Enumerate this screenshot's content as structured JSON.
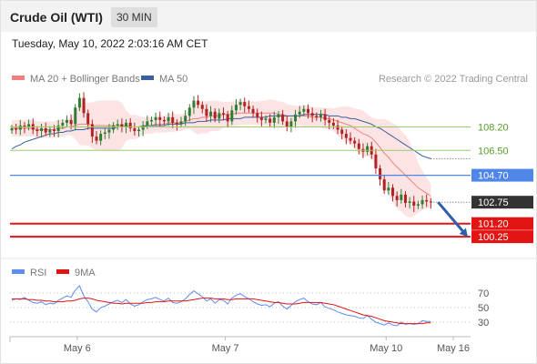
{
  "header": {
    "title": "Crude Oil (WTI)",
    "interval": "30 MIN",
    "timestamp": "Tuesday, May 10, 2022 2:03:16 AM CET"
  },
  "legend": {
    "ma20": "MA 20 + Bollinger Bands",
    "ma50": "MA 50",
    "copyright": "Research © 2022 Trading Central",
    "rsi": "RSI",
    "rsi_ma": "9MA"
  },
  "colors": {
    "bollinger_fill": "#fde4e4",
    "ma20": "#f08080",
    "ma50": "#3a5fa0",
    "candle_up": "#2f7d32",
    "candle_down": "#b22222",
    "resistance": "#9acd66",
    "pivot": "#4f86e8",
    "support": "#e31414",
    "current": "#333333",
    "rsi": "#5b8def",
    "rsi_ma": "#e31414"
  },
  "chart_data": {
    "type": "candlestick",
    "price_range": [
      99.6,
      110.8
    ],
    "levels": [
      {
        "value": 108.2,
        "label": "108.20",
        "kind": "resistance"
      },
      {
        "value": 106.5,
        "label": "106.50",
        "kind": "resistance"
      },
      {
        "value": 104.7,
        "label": "104.70",
        "kind": "pivot"
      },
      {
        "value": 102.75,
        "label": "102.75",
        "kind": "current"
      },
      {
        "value": 101.2,
        "label": "101.20",
        "kind": "support"
      },
      {
        "value": 100.25,
        "label": "100.25",
        "kind": "support"
      }
    ],
    "close": [
      108.1,
      108.0,
      108.3,
      108.2,
      108.4,
      108.0,
      107.9,
      108.1,
      107.8,
      108.0,
      107.9,
      108.3,
      108.5,
      108.7,
      108.4,
      109.6,
      110.3,
      109.2,
      108.4,
      107.5,
      107.2,
      107.7,
      107.8,
      108.0,
      108.3,
      108.4,
      108.2,
      108.5,
      108.1,
      107.9,
      108.0,
      108.3,
      108.6,
      108.7,
      108.9,
      108.7,
      108.6,
      108.9,
      108.5,
      108.4,
      108.6,
      109.0,
      109.6,
      110.1,
      109.8,
      109.5,
      109.0,
      109.3,
      108.8,
      109.2,
      109.1,
      108.6,
      109.4,
      109.8,
      110.0,
      109.7,
      109.5,
      109.2,
      108.9,
      108.7,
      108.8,
      108.5,
      108.9,
      109.1,
      108.6,
      108.2,
      108.6,
      109.1,
      109.3,
      109.5,
      109.2,
      109.0,
      108.9,
      109.1,
      108.7,
      108.5,
      108.3,
      108.0,
      107.7,
      107.4,
      107.2,
      107.0,
      106.6,
      106.4,
      106.8,
      106.2,
      105.2,
      104.4,
      103.6,
      103.8,
      103.2,
      102.9,
      103.3,
      102.7,
      102.8,
      102.5,
      102.6,
      102.9,
      102.8,
      102.75
    ],
    "ma20": [
      108.1,
      108.1,
      108.1,
      108.1,
      108.1,
      108.1,
      108.0,
      108.0,
      108.0,
      108.0,
      108.0,
      108.1,
      108.1,
      108.2,
      108.2,
      108.3,
      108.4,
      108.4,
      108.4,
      108.3,
      108.3,
      108.3,
      108.3,
      108.3,
      108.3,
      108.3,
      108.3,
      108.3,
      108.2,
      108.2,
      108.2,
      108.3,
      108.3,
      108.3,
      108.4,
      108.4,
      108.4,
      108.5,
      108.5,
      108.5,
      108.5,
      108.6,
      108.7,
      108.8,
      108.8,
      108.9,
      108.9,
      109.0,
      109.0,
      109.0,
      109.1,
      109.1,
      109.1,
      109.2,
      109.2,
      109.2,
      109.2,
      109.2,
      109.2,
      109.2,
      109.2,
      109.2,
      109.2,
      109.1,
      109.1,
      109.0,
      109.0,
      109.0,
      109.0,
      109.0,
      109.0,
      108.9,
      108.9,
      108.9,
      108.8,
      108.8,
      108.7,
      108.6,
      108.5,
      108.4,
      108.3,
      108.1,
      107.9,
      107.7,
      107.6,
      107.4,
      107.1,
      106.7,
      106.3,
      106.0,
      105.6,
      105.3,
      105.0,
      104.7,
      104.4,
      104.1,
      103.8,
      103.6,
      103.4,
      103.2
    ],
    "ma50": [
      106.6,
      106.8,
      106.9,
      107.1,
      107.2,
      107.3,
      107.4,
      107.5,
      107.6,
      107.7,
      107.7,
      107.8,
      107.8,
      107.9,
      107.9,
      108.0,
      108.0,
      108.0,
      108.1,
      108.1,
      108.1,
      108.1,
      108.1,
      108.1,
      108.1,
      108.2,
      108.2,
      108.2,
      108.2,
      108.2,
      108.2,
      108.2,
      108.3,
      108.3,
      108.3,
      108.3,
      108.3,
      108.4,
      108.4,
      108.4,
      108.4,
      108.5,
      108.5,
      108.5,
      108.6,
      108.6,
      108.6,
      108.7,
      108.7,
      108.7,
      108.7,
      108.8,
      108.8,
      108.8,
      108.8,
      108.9,
      108.9,
      108.9,
      108.9,
      108.9,
      108.9,
      109.0,
      109.0,
      109.0,
      109.0,
      109.0,
      109.0,
      109.0,
      109.0,
      109.1,
      109.1,
      109.1,
      109.1,
      109.1,
      109.1,
      109.0,
      109.0,
      109.0,
      108.9,
      108.9,
      108.8,
      108.8,
      108.7,
      108.6,
      108.5,
      108.4,
      108.2,
      108.1,
      107.9,
      107.7,
      107.5,
      107.3,
      107.1,
      106.9,
      106.7,
      106.5,
      106.3,
      106.1,
      106.0,
      105.9
    ],
    "rsi": [
      60,
      62,
      61,
      64,
      60,
      57,
      56,
      58,
      54,
      56,
      55,
      60,
      63,
      66,
      64,
      74,
      80,
      66,
      58,
      48,
      44,
      50,
      52,
      55,
      58,
      60,
      57,
      61,
      55,
      52,
      54,
      58,
      61,
      62,
      64,
      61,
      59,
      63,
      57,
      56,
      58,
      62,
      68,
      73,
      69,
      65,
      59,
      62,
      56,
      61,
      60,
      55,
      63,
      67,
      69,
      65,
      62,
      58,
      55,
      53,
      54,
      51,
      56,
      58,
      52,
      48,
      53,
      58,
      61,
      63,
      58,
      55,
      54,
      57,
      51,
      49,
      47,
      44,
      42,
      40,
      39,
      38,
      36,
      35,
      39,
      34,
      30,
      28,
      26,
      29,
      26,
      25,
      30,
      27,
      28,
      27,
      28,
      32,
      31,
      31
    ],
    "rsi_ma": [
      62,
      62,
      62,
      62,
      61,
      61,
      60,
      60,
      59,
      59,
      58,
      58,
      58,
      59,
      59,
      60,
      62,
      63,
      63,
      62,
      60,
      59,
      58,
      57,
      56,
      56,
      55,
      56,
      56,
      56,
      56,
      56,
      57,
      57,
      58,
      58,
      58,
      59,
      59,
      59,
      59,
      59,
      60,
      61,
      62,
      63,
      63,
      63,
      62,
      62,
      62,
      61,
      61,
      62,
      62,
      62,
      62,
      62,
      61,
      60,
      59,
      58,
      57,
      57,
      56,
      55,
      55,
      55,
      56,
      57,
      57,
      57,
      57,
      57,
      56,
      55,
      54,
      52,
      50,
      48,
      46,
      44,
      42,
      40,
      39,
      38,
      36,
      34,
      32,
      31,
      30,
      29,
      28,
      28,
      28,
      28,
      28,
      28,
      29,
      29
    ],
    "rsi_levels": [
      70,
      50,
      30
    ],
    "x_ticks": [
      {
        "index": 12,
        "label": "May 6"
      },
      {
        "index": 47,
        "label": "May 7"
      },
      {
        "index": 85,
        "label": "May 10"
      },
      {
        "index": 106,
        "label": "May 16"
      }
    ],
    "projection": {
      "from": 102.75,
      "to": 100.25
    }
  }
}
